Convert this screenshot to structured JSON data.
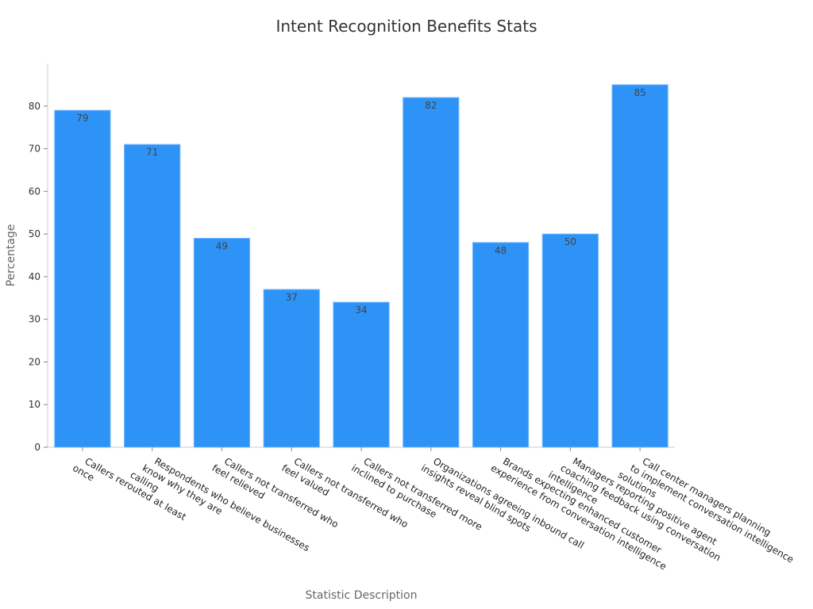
{
  "chart_data": {
    "type": "bar",
    "title": "Intent Recognition Benefits Stats",
    "xlabel": "Statistic Description",
    "ylabel": "Percentage",
    "ylim": [
      0,
      90
    ],
    "yticks": [
      0,
      10,
      20,
      30,
      40,
      50,
      60,
      70,
      80
    ],
    "bar_color": "#2e93f7",
    "categories": [
      [
        "Callers rerouted at least",
        "once"
      ],
      [
        "Respondents who believe businesses",
        "know why they are",
        "calling"
      ],
      [
        "Callers not transferred who",
        "feel relieved"
      ],
      [
        "Callers not transferred who",
        "feel valued"
      ],
      [
        "Callers not transferred more",
        "inclined to purchase"
      ],
      [
        "Organizations agreeing inbound call",
        "insights reveal blind spots"
      ],
      [
        "Brands expecting enhanced customer",
        "experience from conversation intelligence"
      ],
      [
        "Managers reporting positive agent",
        "coaching feedback using conversation",
        "intelligence"
      ],
      [
        "Call center managers planning",
        "to implement conversation intelligence",
        "solutions"
      ]
    ],
    "values": [
      79,
      71,
      49,
      37,
      34,
      82,
      48,
      50,
      85
    ],
    "grid": false,
    "legend": "none"
  }
}
